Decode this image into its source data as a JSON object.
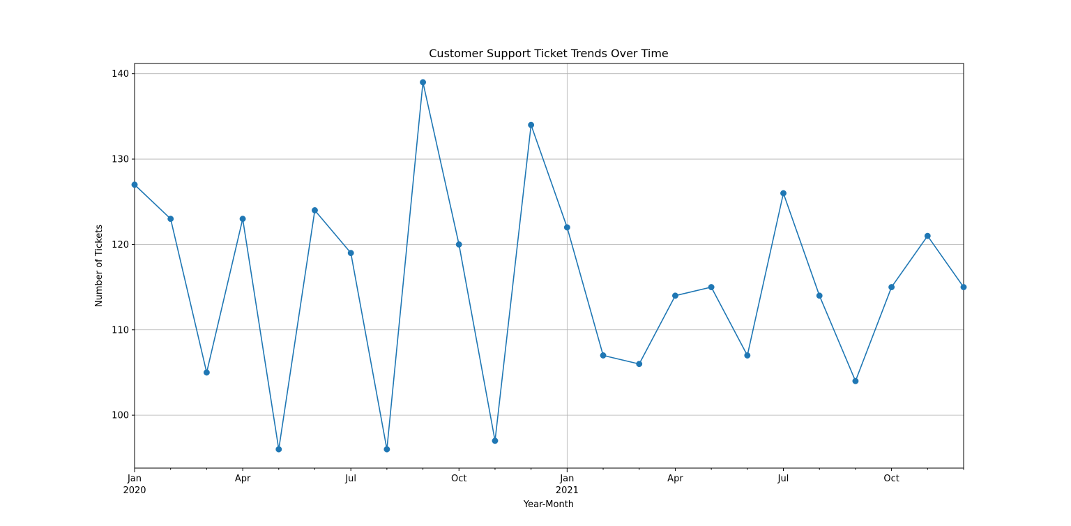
{
  "chart_data": {
    "type": "line",
    "title": "Customer Support Ticket Trends Over Time",
    "xlabel": "Year-Month",
    "ylabel": "Number of Tickets",
    "x": [
      "2020-01",
      "2020-02",
      "2020-03",
      "2020-04",
      "2020-05",
      "2020-06",
      "2020-07",
      "2020-08",
      "2020-09",
      "2020-10",
      "2020-11",
      "2020-12",
      "2021-01",
      "2021-02",
      "2021-03",
      "2021-04",
      "2021-05",
      "2021-06",
      "2021-07",
      "2021-08",
      "2021-09",
      "2021-10",
      "2021-11",
      "2021-12"
    ],
    "series": [
      {
        "values": [
          127,
          123,
          105,
          123,
          96,
          124,
          119,
          96,
          139,
          120,
          97,
          134,
          122,
          107,
          106,
          114,
          115,
          107,
          126,
          114,
          104,
          115,
          121,
          115
        ],
        "color": "#1f77b4",
        "marker": "circle"
      }
    ],
    "ylim": [
      93.8,
      141.2
    ],
    "xlim": [
      "2020-01",
      "2021-12"
    ],
    "y_ticks": [
      100,
      110,
      120,
      130,
      140
    ],
    "x_ticks": [
      {
        "x": "2020-01",
        "label": "Jan",
        "sublabel": "2020"
      },
      {
        "x": "2020-04",
        "label": "Apr",
        "sublabel": ""
      },
      {
        "x": "2020-07",
        "label": "Jul",
        "sublabel": ""
      },
      {
        "x": "2020-10",
        "label": "Oct",
        "sublabel": ""
      },
      {
        "x": "2021-01",
        "label": "Jan",
        "sublabel": "2021"
      },
      {
        "x": "2021-04",
        "label": "Apr",
        "sublabel": ""
      },
      {
        "x": "2021-07",
        "label": "Jul",
        "sublabel": ""
      },
      {
        "x": "2021-10",
        "label": "Oct",
        "sublabel": ""
      }
    ],
    "grid": true,
    "grid_color": "#b0b0b0"
  }
}
